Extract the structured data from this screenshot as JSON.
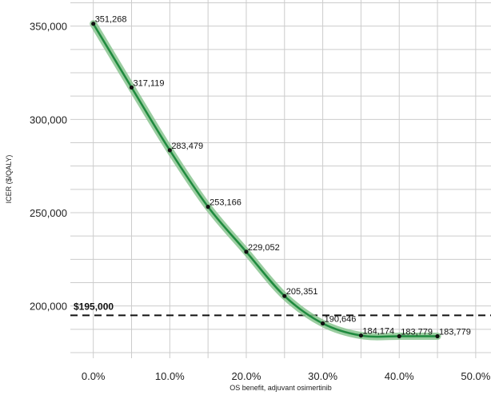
{
  "chart_data": {
    "type": "line",
    "title": "",
    "xlabel": "OS benefit, adjuvant osimertinib",
    "ylabel": "ICER ($/QALY)",
    "xlim": [
      -0.03,
      0.52
    ],
    "ylim": [
      172000,
      364000
    ],
    "grid": true,
    "x_ticks": [
      0.0,
      0.1,
      0.2,
      0.3,
      0.4,
      0.5
    ],
    "x_tick_labels": [
      "0.0%",
      "10.0%",
      "20.0%",
      "30.0%",
      "40.0%",
      "50.0%"
    ],
    "y_ticks": [
      200000,
      250000,
      300000,
      350000
    ],
    "y_tick_labels": [
      "200,000",
      "250,000",
      "300,000",
      "350,000"
    ],
    "series": [
      {
        "x": [
          0.0,
          0.05,
          0.1,
          0.15,
          0.2,
          0.25,
          0.3,
          0.35,
          0.4,
          0.45
        ],
        "y": [
          351268,
          317119,
          283479,
          253166,
          229052,
          205351,
          190646,
          184174,
          183779,
          183779
        ],
        "labels": [
          "351,268",
          "317,119",
          "283,479",
          "253,166",
          "229,052",
          "205,351",
          "190,646",
          "184,174",
          "183,779",
          "183,779"
        ]
      }
    ],
    "reference_line": {
      "y": 195000,
      "label": "$195,000",
      "style": "dashed"
    },
    "colors": {
      "line": "#1e8a3e",
      "band": "#88c48f",
      "grid": "#cccccc",
      "points": "#111111",
      "ref_line": "#111111"
    }
  }
}
